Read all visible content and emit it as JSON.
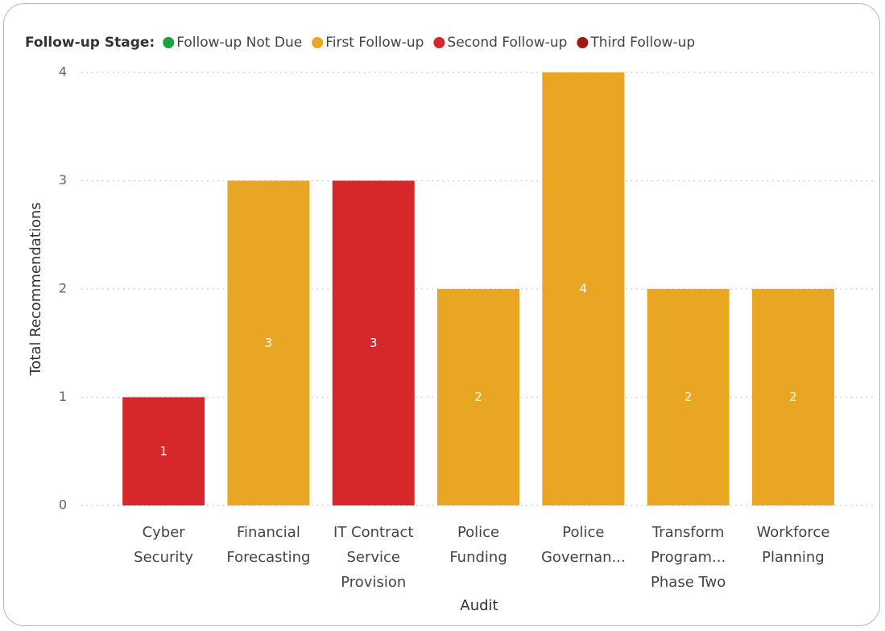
{
  "chart_data": {
    "type": "stacked_bar",
    "legend_title": "Follow-up Stage:",
    "x_label": "Audit",
    "y_label": "Total Recommendations",
    "categories": [
      "Cyber Security",
      "Financial Forecasting",
      "IT Contract Service Provision",
      "Police Funding",
      "Police Governan...",
      "Transform Program... Phase Two",
      "Workforce Planning"
    ],
    "series": [
      {
        "name": "Follow-up Not Due",
        "color": "#1aa33c",
        "values": [
          null,
          null,
          null,
          null,
          null,
          null,
          null
        ]
      },
      {
        "name": "First Follow-up",
        "color": "#e8a623",
        "values": [
          null,
          3,
          null,
          2,
          4,
          2,
          2
        ]
      },
      {
        "name": "Second Follow-up",
        "color": "#d6282b",
        "values": [
          1,
          null,
          3,
          null,
          null,
          null,
          null
        ]
      },
      {
        "name": "Third Follow-up",
        "color": "#a11a0f",
        "values": [
          null,
          null,
          null,
          null,
          null,
          null,
          null
        ]
      }
    ],
    "ylim": [
      0,
      4
    ],
    "yticks": [
      0,
      1,
      2,
      3,
      4
    ],
    "grid": true,
    "legend_position": "top-left"
  }
}
